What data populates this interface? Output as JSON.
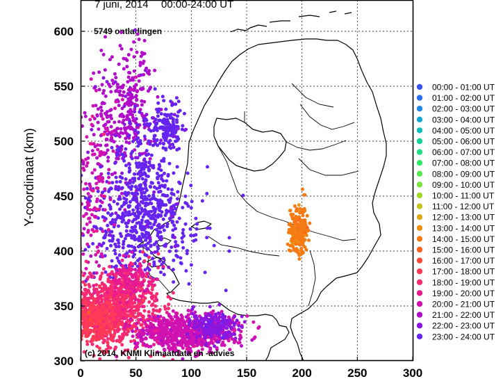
{
  "header": {
    "date": "7 juni, 2014",
    "time_range": "00:00-24:00 UT",
    "count_label": "5749 ontladingen",
    "credit": "(c) 2014, KNMI Klimaatdata en -advies"
  },
  "chart_data": {
    "type": "scatter",
    "ylabel": "Y-coordinaat (km)",
    "xlabel": "",
    "xlim": [
      0,
      300
    ],
    "ylim": [
      300,
      620
    ],
    "x_ticks": [
      "0",
      "50",
      "100",
      "150",
      "200",
      "250",
      "300"
    ],
    "y_ticks": [
      "300",
      "350",
      "400",
      "450",
      "500",
      "550",
      "600"
    ],
    "grid": true,
    "legend_position": "right",
    "legend": [
      {
        "label": "00:00 - 01:00 UT",
        "color": "#3a52f5"
      },
      {
        "label": "01:00 - 02:00 UT",
        "color": "#2d6ef0"
      },
      {
        "label": "02:00 - 03:00 UT",
        "color": "#1f8ae6"
      },
      {
        "label": "03:00 - 04:00 UT",
        "color": "#12a8d2"
      },
      {
        "label": "04:00 - 05:00 UT",
        "color": "#0dbfb8"
      },
      {
        "label": "05:00 - 06:00 UT",
        "color": "#13d49c"
      },
      {
        "label": "06:00 - 07:00 UT",
        "color": "#1fe082"
      },
      {
        "label": "07:00 - 08:00 UT",
        "color": "#35e86a"
      },
      {
        "label": "08:00 - 09:00 UT",
        "color": "#55e94f"
      },
      {
        "label": "09:00 - 10:00 UT",
        "color": "#7be43a"
      },
      {
        "label": "10:00 - 11:00 UT",
        "color": "#a0d82a"
      },
      {
        "label": "11:00 - 12:00 UT",
        "color": "#c3c41e"
      },
      {
        "label": "12:00 - 13:00 UT",
        "color": "#dcaa16"
      },
      {
        "label": "13:00 - 14:00 UT",
        "color": "#ec9012"
      },
      {
        "label": "14:00 - 15:00 UT",
        "color": "#f57a14"
      },
      {
        "label": "15:00 - 16:00 UT",
        "color": "#fb6420"
      },
      {
        "label": "16:00 - 17:00 UT",
        "color": "#ff4a3a"
      },
      {
        "label": "17:00 - 18:00 UT",
        "color": "#ff3a56"
      },
      {
        "label": "18:00 - 19:00 UT",
        "color": "#f72a72"
      },
      {
        "label": "19:00 - 20:00 UT",
        "color": "#e81a92"
      },
      {
        "label": "20:00 - 21:00 UT",
        "color": "#d012b0"
      },
      {
        "label": "21:00 - 22:00 UT",
        "color": "#b00ec8"
      },
      {
        "label": "22:00 - 23:00 UT",
        "color": "#8a16e0"
      },
      {
        "label": "23:00 - 24:00 UT",
        "color": "#6624f0"
      }
    ],
    "clusters": [
      {
        "name": "",
        "hour": 21,
        "cx": 35,
        "cy": 520,
        "sx": 14,
        "sy": 26,
        "n": 260
      },
      {
        "name": "",
        "hour": 21,
        "cx": 48,
        "cy": 555,
        "sx": 10,
        "sy": 25,
        "n": 70
      },
      {
        "name": "",
        "hour": 23,
        "cx": 78,
        "cy": 513,
        "sx": 8,
        "sy": 11,
        "n": 160
      },
      {
        "name": "",
        "hour": 23,
        "cx": 55,
        "cy": 428,
        "sx": 24,
        "sy": 28,
        "n": 620
      },
      {
        "name": "",
        "hour": 23,
        "cx": 58,
        "cy": 480,
        "sx": 12,
        "sy": 18,
        "n": 110
      },
      {
        "name": "",
        "hour": 20,
        "cx": 12,
        "cy": 440,
        "sx": 8,
        "sy": 45,
        "n": 150
      },
      {
        "name": "",
        "hour": 18,
        "cx": 30,
        "cy": 348,
        "sx": 20,
        "sy": 17,
        "n": 900
      },
      {
        "name": "",
        "hour": 17,
        "cx": 14,
        "cy": 336,
        "sx": 9,
        "sy": 9,
        "n": 300
      },
      {
        "name": "",
        "hour": 19,
        "cx": 45,
        "cy": 375,
        "sx": 9,
        "sy": 9,
        "n": 120
      },
      {
        "name": "",
        "hour": 20,
        "cx": 95,
        "cy": 325,
        "sx": 22,
        "sy": 8,
        "n": 750
      },
      {
        "name": "",
        "hour": 22,
        "cx": 122,
        "cy": 332,
        "sx": 10,
        "sy": 7,
        "n": 200
      },
      {
        "name": "",
        "hour": 14,
        "cx": 197,
        "cy": 418,
        "sx": 4,
        "sy": 10,
        "n": 220
      }
    ]
  }
}
